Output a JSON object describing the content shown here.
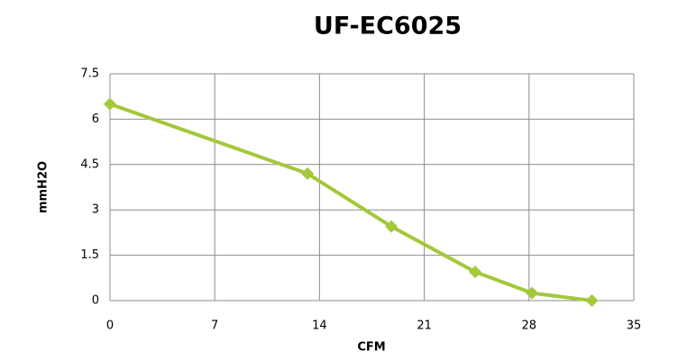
{
  "chart_data": {
    "type": "line",
    "title": "UF-EC6025",
    "x_label": "CFM",
    "y_label": "mmH2O",
    "series": [
      {
        "name": "UF-EC6025",
        "color": "#a3c83a",
        "x": [
          0,
          13.2,
          18.8,
          24.4,
          28.2,
          32.2
        ],
        "values": [
          6.5,
          4.2,
          2.45,
          0.95,
          0.25,
          0
        ]
      }
    ],
    "xlim": [
      0,
      35
    ],
    "xticks": [
      0,
      7,
      14,
      21,
      28,
      35
    ],
    "ylim": [
      0,
      7.5
    ],
    "yticks": [
      0,
      1.5,
      3,
      4.5,
      6,
      7.5
    ],
    "grid": true
  }
}
